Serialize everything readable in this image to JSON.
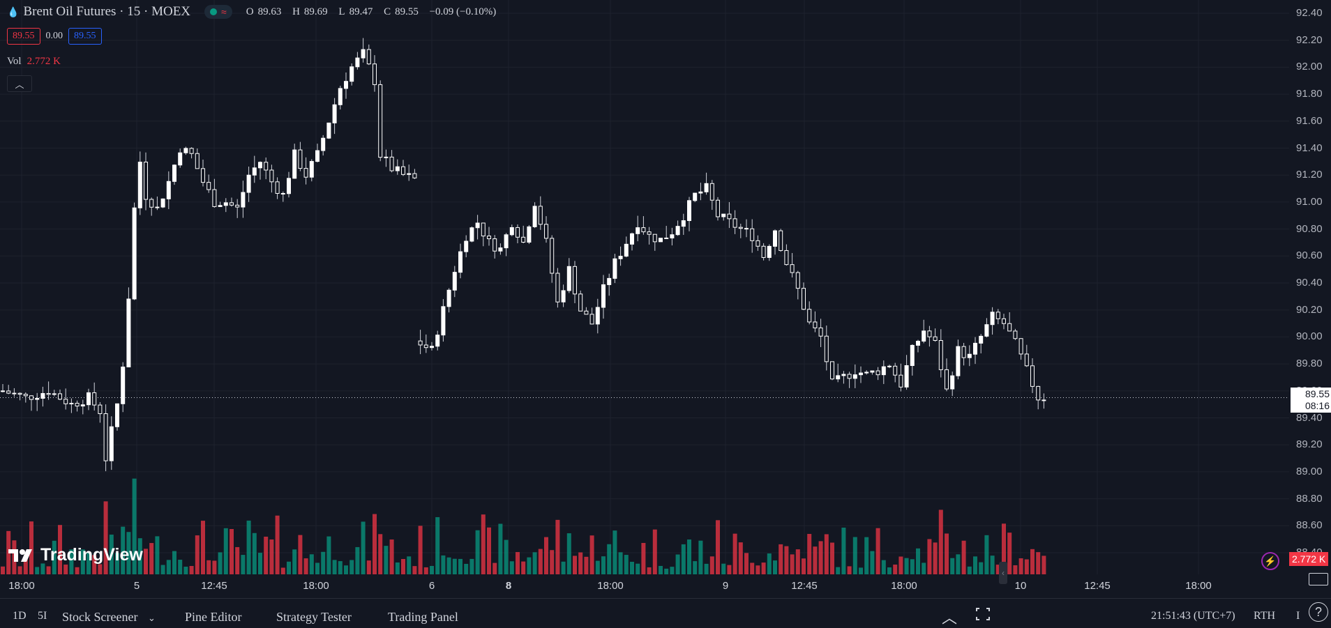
{
  "header": {
    "symbol_icon": "drop-icon",
    "title": "Brent Oil Futures · 15 · MOEX",
    "open_label": "O",
    "open": "89.63",
    "high_label": "H",
    "high": "89.69",
    "low_label": "L",
    "low": "89.47",
    "close_label": "C",
    "close": "89.55",
    "change": "−0.09 (−0.10%)"
  },
  "price_boxes": {
    "bid": "89.55",
    "spread": "0.00",
    "ask": "89.55"
  },
  "volume_legend": {
    "label": "Vol",
    "value": "2.772 K"
  },
  "logo": {
    "text": "TradingView"
  },
  "price_tag": {
    "price": "89.55",
    "countdown": "08:16"
  },
  "volume_tag": "2.772 K",
  "bottom_bar": {
    "interval_1d": "1D",
    "interval_5d": "5I",
    "stock_screener": "Stock Screener",
    "pine_editor": "Pine Editor",
    "strategy_tester": "Strategy Tester",
    "trading_panel": "Trading Panel",
    "clock": "21:51:43 (UTC+7)",
    "session": "RTH",
    "extra": "I"
  },
  "colors": {
    "up": "#089981",
    "down": "#f23645",
    "candle": "#ffffff",
    "bg": "#131722",
    "grid": "#1e222d"
  },
  "chart_data": {
    "type": "candlestick",
    "price_axis_ticks": [
      "92.40",
      "92.20",
      "92.00",
      "91.80",
      "91.60",
      "91.40",
      "91.20",
      "91.00",
      "90.80",
      "90.60",
      "90.40",
      "90.20",
      "90.00",
      "89.80",
      "89.60",
      "89.40",
      "89.20",
      "89.00",
      "88.80",
      "88.60",
      "88.40"
    ],
    "time_axis_ticks": [
      "18:00",
      "5",
      "12:45",
      "18:00",
      "6",
      "8",
      "18:00",
      "9",
      "12:45",
      "18:00",
      "10",
      "12:45",
      "18:00"
    ],
    "bold_ticks": [
      "8"
    ],
    "last_price": 89.55,
    "ylim": [
      88.35,
      92.45
    ],
    "close_path": [
      [
        0,
        89.6
      ],
      [
        4,
        89.55
      ],
      [
        8,
        89.6
      ],
      [
        12,
        89.5
      ],
      [
        15,
        89.55
      ],
      [
        17,
        89.45
      ],
      [
        18,
        89.1
      ],
      [
        19,
        89.3
      ],
      [
        20,
        89.5
      ],
      [
        21,
        89.8
      ],
      [
        22,
        90.3
      ],
      [
        23,
        90.95
      ],
      [
        24,
        91.3
      ],
      [
        25,
        91.05
      ],
      [
        27,
        90.95
      ],
      [
        29,
        91.15
      ],
      [
        31,
        91.4
      ],
      [
        33,
        91.35
      ],
      [
        35,
        91.15
      ],
      [
        37,
        91.0
      ],
      [
        39,
        91.0
      ],
      [
        41,
        90.95
      ],
      [
        43,
        91.2
      ],
      [
        45,
        91.3
      ],
      [
        47,
        91.15
      ],
      [
        49,
        91.05
      ],
      [
        51,
        91.35
      ],
      [
        53,
        91.2
      ],
      [
        55,
        91.35
      ],
      [
        57,
        91.6
      ],
      [
        59,
        91.85
      ],
      [
        61,
        92.0
      ],
      [
        63,
        92.1
      ],
      [
        65,
        91.9
      ],
      [
        66,
        91.35
      ],
      [
        68,
        91.25
      ],
      [
        70,
        91.2
      ],
      [
        72,
        91.17
      ],
      [
        73,
        89.95
      ],
      [
        75,
        89.9
      ],
      [
        77,
        90.2
      ],
      [
        79,
        90.5
      ],
      [
        81,
        90.75
      ],
      [
        83,
        90.85
      ],
      [
        85,
        90.7
      ],
      [
        87,
        90.65
      ],
      [
        89,
        90.85
      ],
      [
        91,
        90.7
      ],
      [
        93,
        91.0
      ],
      [
        95,
        90.7
      ],
      [
        97,
        90.25
      ],
      [
        99,
        90.5
      ],
      [
        101,
        90.2
      ],
      [
        103,
        90.1
      ],
      [
        105,
        90.35
      ],
      [
        107,
        90.55
      ],
      [
        109,
        90.7
      ],
      [
        111,
        90.85
      ],
      [
        113,
        90.75
      ],
      [
        115,
        90.72
      ],
      [
        117,
        90.78
      ],
      [
        119,
        90.9
      ],
      [
        121,
        91.05
      ],
      [
        123,
        91.1
      ],
      [
        125,
        90.9
      ],
      [
        127,
        90.85
      ],
      [
        129,
        90.8
      ],
      [
        131,
        90.75
      ],
      [
        133,
        90.6
      ],
      [
        135,
        90.8
      ],
      [
        137,
        90.55
      ],
      [
        139,
        90.35
      ],
      [
        141,
        90.1
      ],
      [
        143,
        90.0
      ],
      [
        145,
        89.65
      ],
      [
        147,
        89.7
      ],
      [
        149,
        89.75
      ],
      [
        151,
        89.72
      ],
      [
        153,
        89.75
      ],
      [
        155,
        89.8
      ],
      [
        157,
        89.65
      ],
      [
        159,
        89.9
      ],
      [
        161,
        90.05
      ],
      [
        163,
        89.95
      ],
      [
        165,
        89.6
      ],
      [
        167,
        89.9
      ],
      [
        169,
        89.85
      ],
      [
        171,
        90.0
      ],
      [
        173,
        90.15
      ],
      [
        175,
        90.1
      ],
      [
        177,
        89.95
      ],
      [
        179,
        89.75
      ],
      [
        181,
        89.55
      ],
      [
        182,
        89.55
      ]
    ]
  }
}
